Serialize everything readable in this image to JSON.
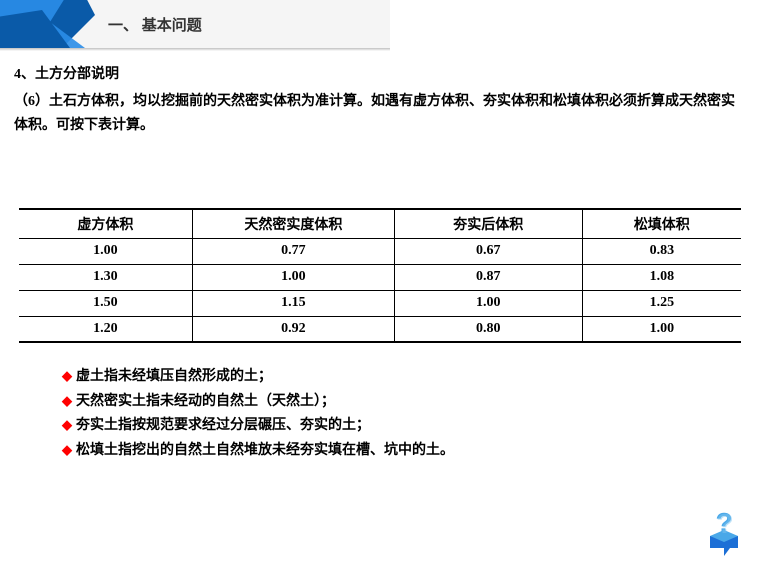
{
  "header": {
    "title": "一、 基本问题",
    "ribbon_color_dark": "#0a5aa8",
    "ribbon_color_light": "#2a8de8",
    "ribbon_bg": "#f5f5f5"
  },
  "section": {
    "title": "4、土方分部说明",
    "text": "（6）土石方体积，均以挖掘前的天然密实体积为准计算。如遇有虚方体积、夯实体积和松填体积必须折算成天然密实体积。可按下表计算。"
  },
  "table": {
    "columns": [
      "虚方体积",
      "天然密实度体积",
      "夯实后体积",
      "松填体积"
    ],
    "col_widths": [
      "24%",
      "28%",
      "26%",
      "22%"
    ],
    "rows": [
      [
        "1.00",
        "0.77",
        "0.67",
        "0.83"
      ],
      [
        "1.30",
        "1.00",
        "0.87",
        "1.08"
      ],
      [
        "1.50",
        "1.15",
        "1.00",
        "1.25"
      ],
      [
        "1.20",
        "0.92",
        "0.80",
        "1.00"
      ]
    ],
    "border_color": "#000000",
    "header_fontsize": 14,
    "cell_fontsize": 14
  },
  "bullets": {
    "items": [
      "虚土指未经填压自然形成的土；",
      "天然密实土指未经动的自然土（天然土）；",
      "夯实土指按规范要求经过分层碾压、夯实的土；",
      "松填土指挖出的自然土自然堆放未经夯实填在槽、坑中的土。"
    ],
    "diamond_color": "#ff0000"
  },
  "qmark": {
    "box_color": "#1c6fd6",
    "q_color": "#4aa8e8"
  }
}
